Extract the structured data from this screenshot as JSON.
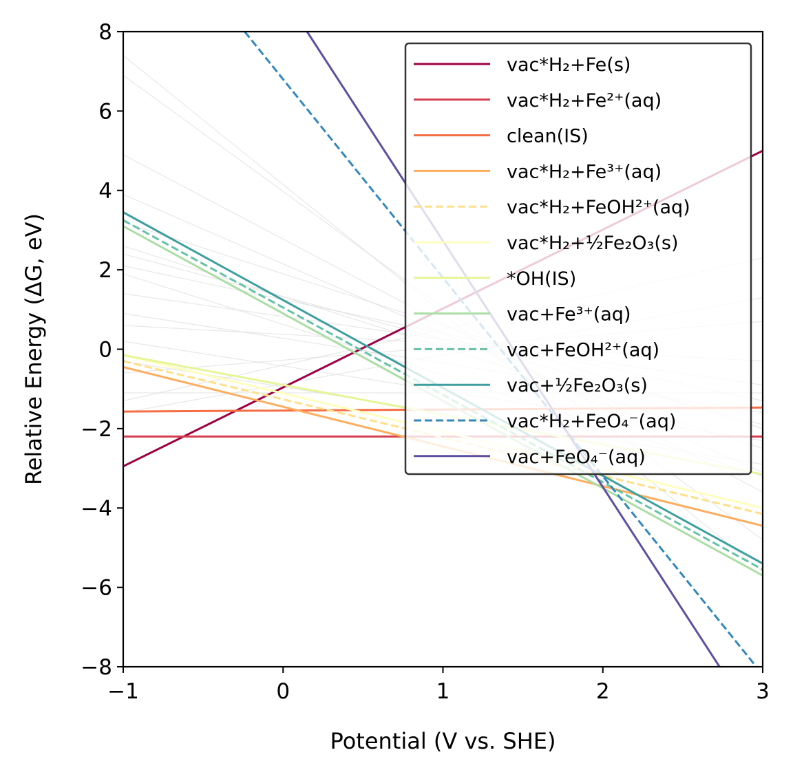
{
  "chart_data": {
    "type": "line",
    "title": "",
    "xlabel": "Potential (V vs. SHE)",
    "ylabel": "Relative Energy (ΔG, eV)",
    "xlim": [
      -1,
      3
    ],
    "ylim": [
      -8,
      8
    ],
    "xticks": [
      -1,
      0,
      1,
      2,
      3
    ],
    "yticks": [
      -8,
      -6,
      -4,
      -2,
      0,
      2,
      4,
      6,
      8
    ],
    "grid": false,
    "legend_position": "upper-right",
    "series": [
      {
        "name": "vac*H₂+Fe(s)",
        "color": "#9e0142",
        "dash": "solid",
        "x": [
          -1,
          3
        ],
        "y": [
          -2.95,
          5.0
        ]
      },
      {
        "name": "vac*H₂+Fe²⁺(aq)",
        "color": "#d53e4f",
        "dash": "solid",
        "x": [
          -1,
          3
        ],
        "y": [
          -2.2,
          -2.2
        ]
      },
      {
        "name": "clean(IS)",
        "color": "#f46d43",
        "dash": "solid",
        "x": [
          -1,
          3
        ],
        "y": [
          -1.57,
          -1.47
        ]
      },
      {
        "name": "vac*H₂+Fe³⁺(aq)",
        "color": "#fdae61",
        "dash": "solid",
        "x": [
          -1,
          3
        ],
        "y": [
          -0.45,
          -4.45
        ]
      },
      {
        "name": "vac*H₂+FeOH²⁺(aq)",
        "color": "#fee08b",
        "dash": "dashed",
        "x": [
          -1,
          3
        ],
        "y": [
          -0.3,
          -4.15
        ]
      },
      {
        "name": "vac*H₂+½Fe₂O₃(s)",
        "color": "#ffffbf",
        "dash": "solid",
        "x": [
          -1,
          3
        ],
        "y": [
          -0.15,
          -4.0
        ]
      },
      {
        "name": "*OH(IS)",
        "color": "#e6f598",
        "dash": "solid",
        "x": [
          -1,
          3
        ],
        "y": [
          -0.15,
          -3.15
        ]
      },
      {
        "name": "vac+Fe³⁺(aq)",
        "color": "#abdda4",
        "dash": "solid",
        "x": [
          -1,
          3
        ],
        "y": [
          3.1,
          -5.7
        ]
      },
      {
        "name": "vac+FeOH²⁺(aq)",
        "color": "#66c2a5",
        "dash": "dashed",
        "x": [
          -1,
          3
        ],
        "y": [
          3.25,
          -5.55
        ]
      },
      {
        "name": "vac+½Fe₂O₃(s)",
        "color": "#3f9f9f",
        "dash": "solid",
        "x": [
          -1,
          3
        ],
        "y": [
          3.45,
          -5.4
        ]
      },
      {
        "name": "vac*H₂+FeO₄⁻(aq)",
        "color": "#3288bd",
        "dash": "dashed",
        "x": [
          -0.24,
          2.96
        ],
        "y": [
          8.0,
          -8.0
        ]
      },
      {
        "name": "vac+FeO₄⁻(aq)",
        "color": "#5e4fa2",
        "dash": "solid",
        "x": [
          0.15,
          2.73
        ],
        "y": [
          8.0,
          -8.0
        ]
      }
    ],
    "background_lines": {
      "color": "#dddddd",
      "segments": [
        [
          -1,
          7.4,
          3,
          -5.6
        ],
        [
          -1,
          6.9,
          3,
          -4.8
        ],
        [
          -1,
          4.9,
          3,
          -3.6
        ],
        [
          -1,
          3.9,
          3,
          -3.1
        ],
        [
          -1,
          2.6,
          3,
          -2.5
        ],
        [
          -1,
          2.4,
          3,
          -1.9
        ],
        [
          -1,
          2.1,
          3,
          -1.3
        ],
        [
          -1,
          1.4,
          3,
          -0.9
        ],
        [
          -1,
          0.6,
          3,
          -0.3
        ],
        [
          -1,
          0.2,
          3,
          -2.3
        ],
        [
          -1,
          -0.6,
          3,
          0.7
        ],
        [
          -1,
          -1.1,
          3,
          -1.1
        ],
        [
          -1,
          -1.3,
          3,
          2.3
        ],
        [
          -1,
          -1.6,
          3,
          1.3
        ],
        [
          -1,
          3.2,
          3,
          -2.0
        ],
        [
          -1,
          1.9,
          3,
          -3.2
        ],
        [
          -1,
          0.9,
          3,
          -1.6
        ],
        [
          -1,
          -0.3,
          3,
          -2.9
        ]
      ]
    }
  }
}
